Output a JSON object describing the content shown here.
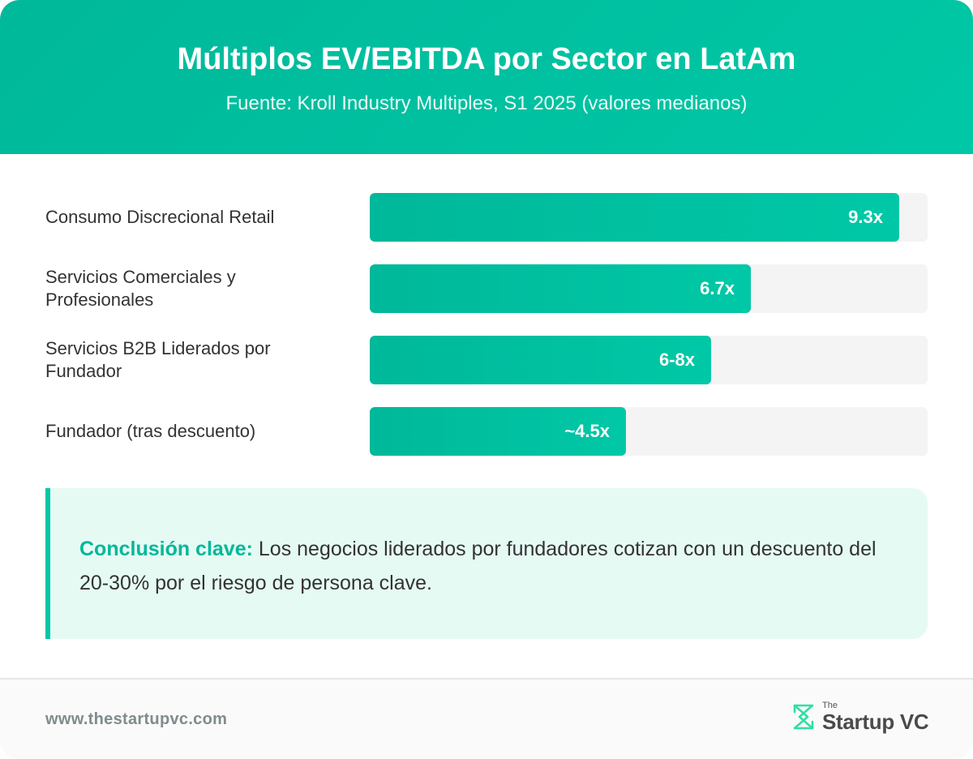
{
  "header": {
    "title": "Múltiplos EV/EBITDA por Sector en LatAm",
    "subtitle": "Fuente: Kroll Industry Multiples, S1 2025 (valores medianos)"
  },
  "chart_data": {
    "type": "bar",
    "orientation": "horizontal",
    "title": "Múltiplos EV/EBITDA por Sector en LatAm",
    "subtitle": "Fuente: Kroll Industry Multiples, S1 2025 (valores medianos)",
    "xlim": [
      0,
      9.8
    ],
    "grid": false,
    "categories": [
      "Consumo Discrecional Retail",
      "Servicios Comerciales y Profesionales",
      "Servicios B2B Liderados por Fundador",
      "Fundador (tras descuento)"
    ],
    "values": [
      9.3,
      6.7,
      6.0,
      4.5
    ],
    "labels": [
      "9.3x",
      "6.7x",
      "6-8x",
      "~4.5x"
    ],
    "colors": {
      "bar_start": "#00b89a",
      "bar_end": "#00c8a6",
      "track": "#f4f4f4"
    }
  },
  "conclusion": {
    "label": "Conclusión clave:",
    "text": " Los negocios liderados por fundadores cotizan con un descuento del 20-30% por el riesgo de persona clave."
  },
  "footer": {
    "url": "www.thestartupvc.com",
    "logo_the": "The",
    "logo_name": "Startup VC",
    "logo_icon": "hexagon-x-logo-icon"
  },
  "colors": {
    "accent": "#00c8a6",
    "accent_dark": "#00b89a",
    "text": "#333333",
    "muted": "#7f8c8d"
  }
}
